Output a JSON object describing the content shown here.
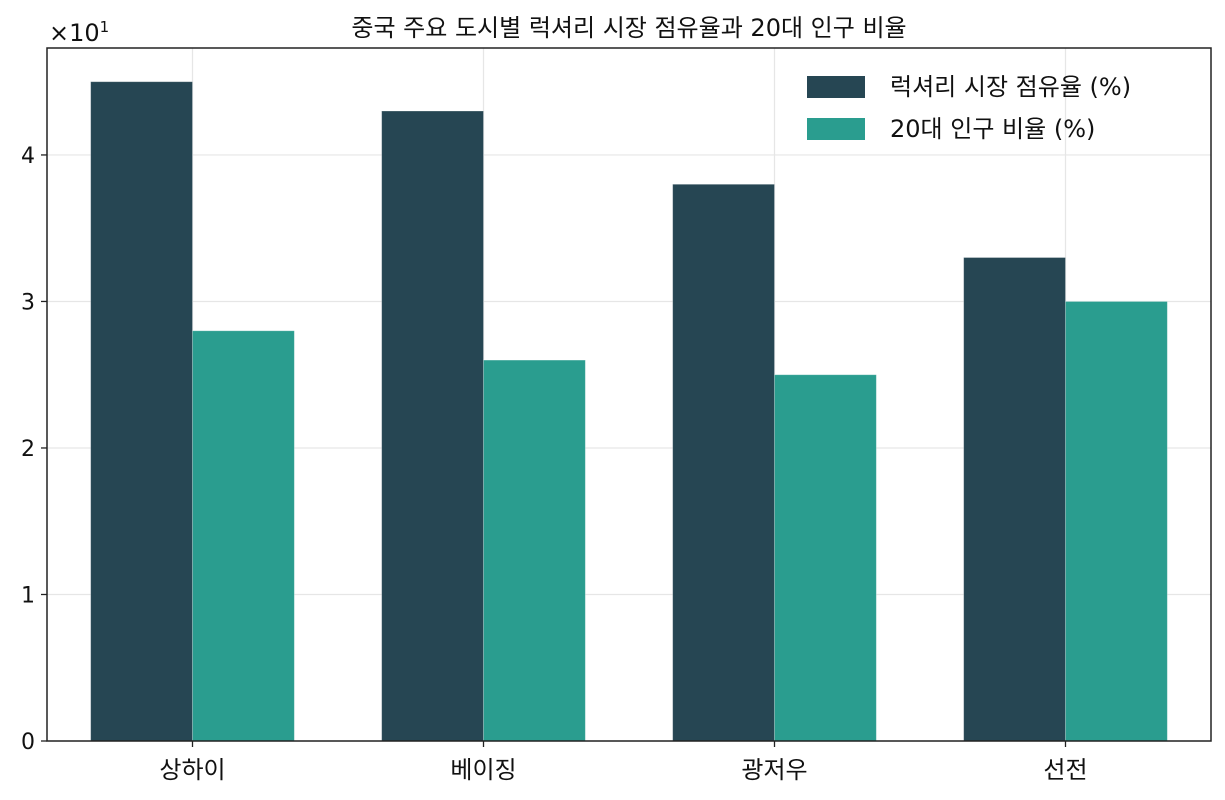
{
  "chart_data": {
    "type": "bar",
    "title": "중국 주요 도시별 럭셔리 시장 점유율과 20대 인구 비율",
    "xlabel": "",
    "ylabel": "",
    "categories": [
      "상하이",
      "베이징",
      "광저우",
      "선전"
    ],
    "series": [
      {
        "name": "럭셔리 시장 점유율 (%)",
        "values": [
          45,
          43,
          38,
          33
        ],
        "color": "#264653"
      },
      {
        "name": "20대 인구 비율 (%)",
        "values": [
          28,
          26,
          25,
          30
        ],
        "color": "#2a9d8f"
      }
    ],
    "ylim": [
      0,
      47.3
    ],
    "y_ticks": [
      0,
      1,
      2,
      3,
      4
    ],
    "y_multiplier": {
      "base": "×10",
      "exponent": "1"
    },
    "grid": true,
    "legend_position": "top-right"
  }
}
